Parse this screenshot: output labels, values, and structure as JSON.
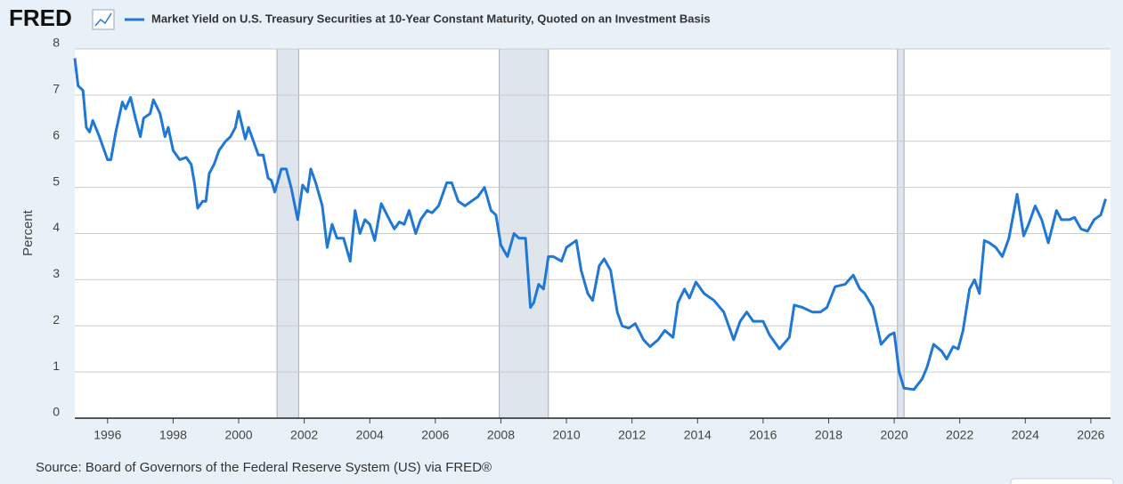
{
  "logo": "FRED",
  "chart_data": {
    "type": "line",
    "title": "Market Yield on U.S. Treasury Securities at 10-Year Constant Maturity, Quoted on an Investment Basis",
    "y_label": "Percent",
    "source": "Source: Board of Governors of the Federal Reserve System (US) via FRED®",
    "color": "#1f77d6",
    "grid": true,
    "xlim": [
      1995,
      2026.6
    ],
    "ylim": [
      0,
      8
    ],
    "xticks": [
      1996,
      1998,
      2000,
      2002,
      2004,
      2006,
      2008,
      2010,
      2012,
      2014,
      2016,
      2018,
      2020,
      2022,
      2024,
      2026
    ],
    "yticks": [
      0,
      1,
      2,
      3,
      4,
      5,
      6,
      7,
      8
    ],
    "recessions": [
      [
        2001.17,
        2001.83
      ],
      [
        2007.95,
        2009.45
      ],
      [
        2020.1,
        2020.3
      ]
    ],
    "x": [
      1995.0,
      1995.1,
      1995.25,
      1995.35,
      1995.45,
      1995.55,
      1995.75,
      1996.0,
      1996.1,
      1996.25,
      1996.45,
      1996.55,
      1996.7,
      1996.85,
      1997.0,
      1997.1,
      1997.3,
      1997.4,
      1997.6,
      1997.75,
      1997.85,
      1998.0,
      1998.2,
      1998.4,
      1998.55,
      1998.65,
      1998.75,
      1998.9,
      1999.0,
      1999.1,
      1999.25,
      1999.4,
      1999.6,
      1999.75,
      1999.9,
      2000.0,
      2000.2,
      2000.3,
      2000.45,
      2000.6,
      2000.75,
      2000.9,
      2001.0,
      2001.1,
      2001.3,
      2001.45,
      2001.6,
      2001.8,
      2001.95,
      2002.1,
      2002.2,
      2002.35,
      2002.55,
      2002.7,
      2002.85,
      2003.0,
      2003.2,
      2003.4,
      2003.55,
      2003.7,
      2003.85,
      2004.0,
      2004.15,
      2004.35,
      2004.6,
      2004.75,
      2004.9,
      2005.05,
      2005.2,
      2005.4,
      2005.55,
      2005.75,
      2005.9,
      2006.1,
      2006.35,
      2006.5,
      2006.7,
      2006.9,
      2007.1,
      2007.3,
      2007.5,
      2007.7,
      2007.85,
      2008.0,
      2008.2,
      2008.4,
      2008.55,
      2008.75,
      2008.9,
      2009.0,
      2009.15,
      2009.3,
      2009.45,
      2009.6,
      2009.85,
      2010.0,
      2010.3,
      2010.45,
      2010.65,
      2010.8,
      2011.0,
      2011.15,
      2011.35,
      2011.55,
      2011.7,
      2011.9,
      2012.1,
      2012.35,
      2012.55,
      2012.8,
      2013.0,
      2013.25,
      2013.4,
      2013.6,
      2013.75,
      2013.95,
      2014.2,
      2014.5,
      2014.8,
      2015.1,
      2015.3,
      2015.5,
      2015.7,
      2016.0,
      2016.2,
      2016.5,
      2016.8,
      2016.95,
      2017.2,
      2017.5,
      2017.75,
      2017.95,
      2018.2,
      2018.5,
      2018.75,
      2018.95,
      2019.1,
      2019.35,
      2019.6,
      2019.85,
      2020.0,
      2020.15,
      2020.3,
      2020.6,
      2020.85,
      2021.0,
      2021.2,
      2021.45,
      2021.6,
      2021.8,
      2021.95,
      2022.1,
      2022.3,
      2022.45,
      2022.6,
      2022.75,
      2022.9,
      2023.1,
      2023.3,
      2023.5,
      2023.75,
      2023.95,
      2024.1,
      2024.3,
      2024.5,
      2024.7,
      2024.95,
      2025.1,
      2025.35,
      2025.5,
      2025.7,
      2025.9,
      2026.1,
      2026.3,
      2026.45
    ],
    "values": [
      7.8,
      7.2,
      7.1,
      6.3,
      6.2,
      6.45,
      6.1,
      5.6,
      5.6,
      6.2,
      6.85,
      6.7,
      6.95,
      6.5,
      6.1,
      6.5,
      6.6,
      6.9,
      6.6,
      6.1,
      6.3,
      5.8,
      5.6,
      5.65,
      5.5,
      5.1,
      4.55,
      4.7,
      4.7,
      5.3,
      5.5,
      5.8,
      6.0,
      6.1,
      6.3,
      6.65,
      6.05,
      6.3,
      6.0,
      5.7,
      5.7,
      5.2,
      5.15,
      4.9,
      5.4,
      5.4,
      5.0,
      4.3,
      5.05,
      4.9,
      5.4,
      5.1,
      4.6,
      3.7,
      4.2,
      3.9,
      3.9,
      3.4,
      4.5,
      4.0,
      4.3,
      4.2,
      3.85,
      4.65,
      4.3,
      4.1,
      4.25,
      4.2,
      4.5,
      4.0,
      4.3,
      4.5,
      4.45,
      4.6,
      5.1,
      5.1,
      4.7,
      4.6,
      4.7,
      4.8,
      5.0,
      4.5,
      4.4,
      3.75,
      3.5,
      4.0,
      3.9,
      3.9,
      2.4,
      2.5,
      2.9,
      2.8,
      3.5,
      3.5,
      3.4,
      3.7,
      3.85,
      3.2,
      2.7,
      2.55,
      3.3,
      3.45,
      3.2,
      2.3,
      2.0,
      1.95,
      2.05,
      1.7,
      1.55,
      1.7,
      1.9,
      1.75,
      2.5,
      2.8,
      2.6,
      2.95,
      2.7,
      2.55,
      2.3,
      1.7,
      2.1,
      2.3,
      2.1,
      2.1,
      1.8,
      1.5,
      1.75,
      2.45,
      2.4,
      2.3,
      2.3,
      2.4,
      2.85,
      2.9,
      3.1,
      2.8,
      2.7,
      2.4,
      1.6,
      1.8,
      1.85,
      1.0,
      0.65,
      0.62,
      0.85,
      1.1,
      1.6,
      1.45,
      1.28,
      1.55,
      1.5,
      1.9,
      2.8,
      3.0,
      2.7,
      3.85,
      3.8,
      3.7,
      3.5,
      3.9,
      4.85,
      3.95,
      4.2,
      4.6,
      4.3,
      3.8,
      4.5,
      4.3,
      4.3,
      4.35,
      4.1,
      4.05,
      4.3,
      4.4,
      4.75
    ]
  }
}
